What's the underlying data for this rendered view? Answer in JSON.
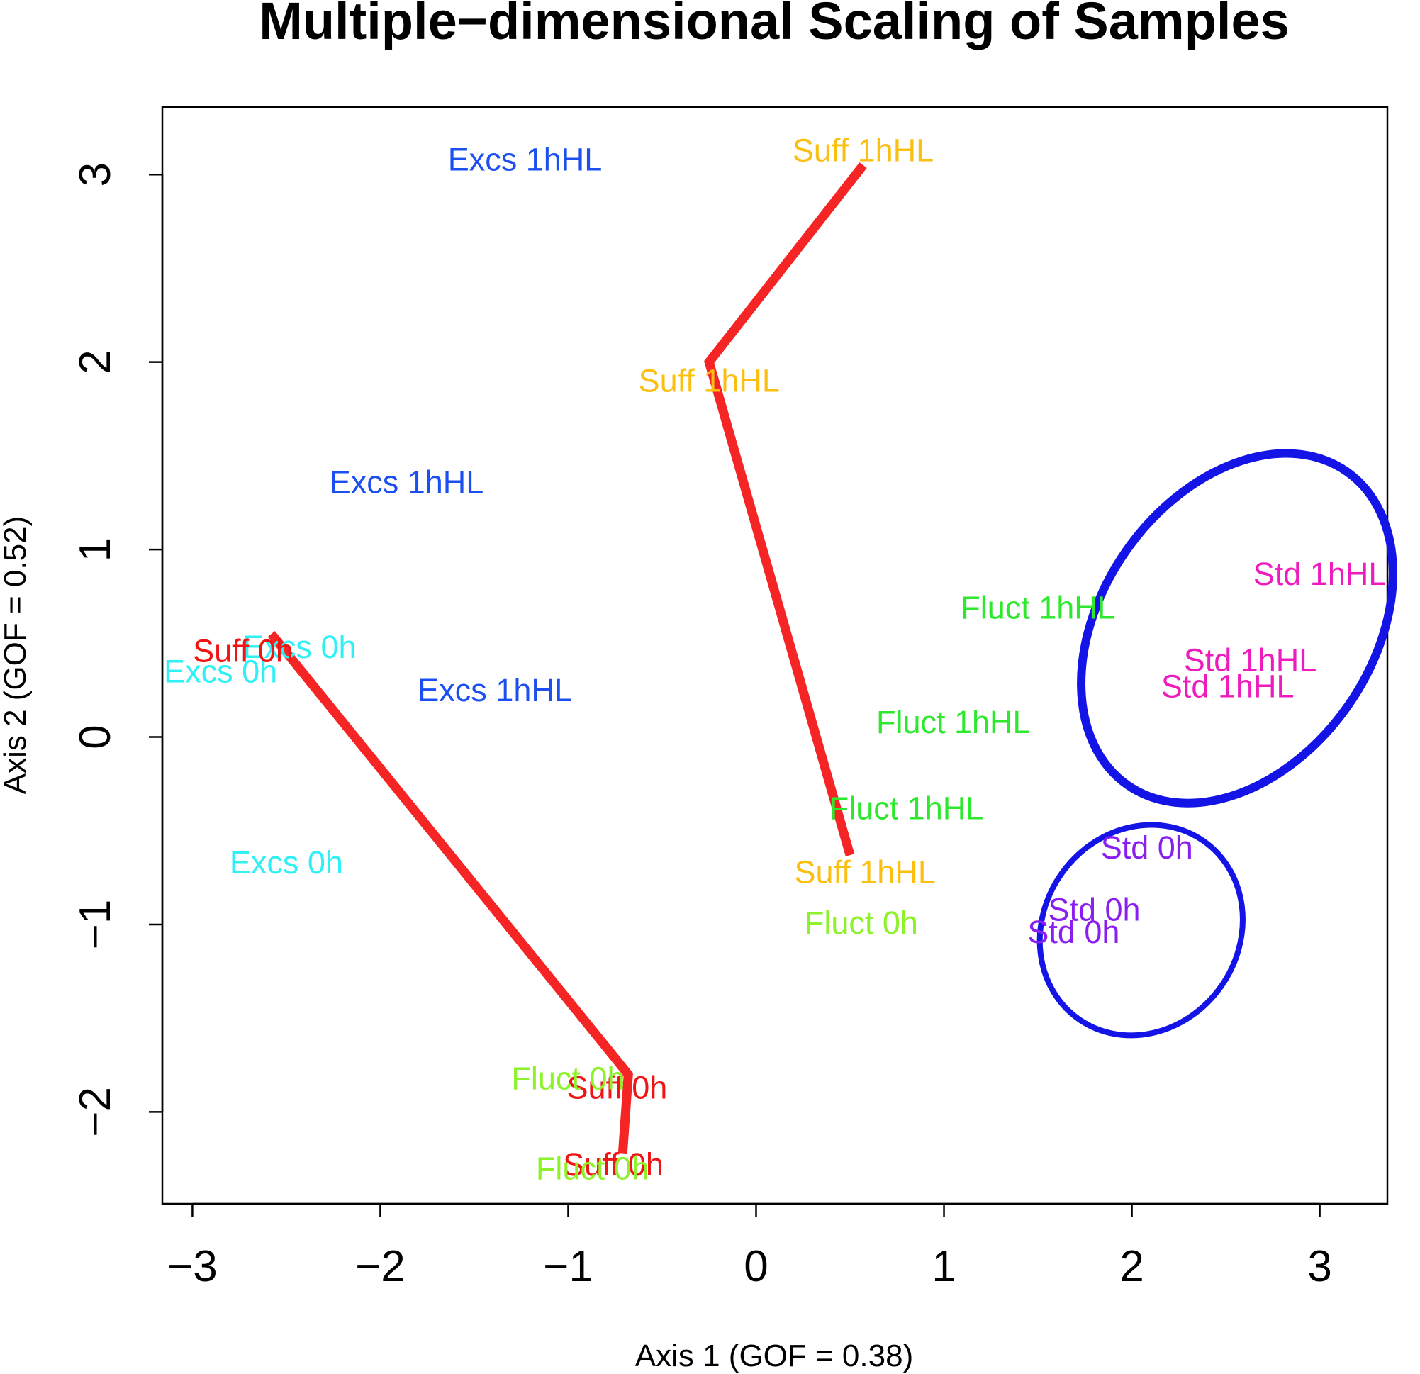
{
  "chart_data": {
    "type": "scatter",
    "title": "Multiple−dimensional Scaling of Samples",
    "xlabel": "Axis 1 (GOF = 0.38)",
    "ylabel": "Axis 2 (GOF = 0.52)",
    "xlim": [
      -3.16,
      3.36
    ],
    "ylim": [
      -2.49,
      3.36
    ],
    "x_ticks": [
      -3,
      -2,
      -1,
      0,
      1,
      2,
      3
    ],
    "x_tick_labels": [
      "−3",
      "−2",
      "−1",
      "0",
      "1",
      "2",
      "3"
    ],
    "y_ticks": [
      -2,
      -1,
      0,
      1,
      2,
      3
    ],
    "y_tick_labels": [
      "−2",
      "−1",
      "0",
      "1",
      "2",
      "3"
    ],
    "grid": false,
    "colors": {
      "Excs 1hHL": "#1c4ff0",
      "Excs 0h": "#2ff0f5",
      "Suff 1hHL": "#fbbf0f",
      "Suff 0h": "#f01414",
      "Fluct 1hHL": "#2ee82e",
      "Fluct 0h": "#8ef22a",
      "Std 1hHL": "#ee1bbe",
      "Std 0h": "#8a1ef0",
      "trajectory": "#f52525",
      "ellipse": "#1414e6"
    },
    "points": [
      {
        "label": "Excs 1hHL",
        "x": -1.23,
        "y": 3.08
      },
      {
        "label": "Excs 1hHL",
        "x": -1.86,
        "y": 1.36
      },
      {
        "label": "Excs 1hHL",
        "x": -1.39,
        "y": 0.25
      },
      {
        "label": "Excs 0h",
        "x": -2.43,
        "y": 0.48
      },
      {
        "label": "Excs 0h",
        "x": -2.85,
        "y": 0.35
      },
      {
        "label": "Excs 0h",
        "x": -2.5,
        "y": -0.67
      },
      {
        "label": "Suff 0h",
        "x": -2.73,
        "y": 0.46
      },
      {
        "label": "Suff 0h",
        "x": -0.74,
        "y": -1.87
      },
      {
        "label": "Suff 0h",
        "x": -0.76,
        "y": -2.28
      },
      {
        "label": "Suff 1hHL",
        "x": 0.57,
        "y": 3.13
      },
      {
        "label": "Suff 1hHL",
        "x": -0.25,
        "y": 1.9
      },
      {
        "label": "Suff 1hHL",
        "x": 0.58,
        "y": -0.72
      },
      {
        "label": "Fluct 1hHL",
        "x": 1.5,
        "y": 0.69
      },
      {
        "label": "Fluct 1hHL",
        "x": 1.05,
        "y": 0.08
      },
      {
        "label": "Fluct 1hHL",
        "x": 0.8,
        "y": -0.38
      },
      {
        "label": "Fluct 0h",
        "x": 0.56,
        "y": -0.99
      },
      {
        "label": "Fluct 0h",
        "x": -1.0,
        "y": -1.82
      },
      {
        "label": "Fluct 0h",
        "x": -0.87,
        "y": -2.3
      },
      {
        "label": "Std 1hHL",
        "x": 3.0,
        "y": 0.87
      },
      {
        "label": "Std 1hHL",
        "x": 2.63,
        "y": 0.41
      },
      {
        "label": "Std 1hHL",
        "x": 2.51,
        "y": 0.27
      },
      {
        "label": "Std 0h",
        "x": 2.08,
        "y": -0.59
      },
      {
        "label": "Std 0h",
        "x": 1.8,
        "y": -0.92
      },
      {
        "label": "Std 0h",
        "x": 1.69,
        "y": -1.04
      }
    ],
    "trajectories": [
      [
        [
          0.57,
          3.05
        ],
        [
          -0.25,
          2.0
        ],
        [
          0.5,
          -0.63
        ]
      ],
      [
        [
          -2.58,
          0.55
        ],
        [
          -0.68,
          -1.8
        ],
        [
          -0.71,
          -2.22
        ]
      ]
    ],
    "ellipses": [
      {
        "cx": 2.56,
        "cy": 0.58,
        "rx": 0.72,
        "ry": 1.02,
        "rotation_deg": 35
      },
      {
        "cx": 2.05,
        "cy": -1.03,
        "rx": 0.52,
        "ry": 0.58,
        "rotation_deg": 35
      }
    ]
  }
}
